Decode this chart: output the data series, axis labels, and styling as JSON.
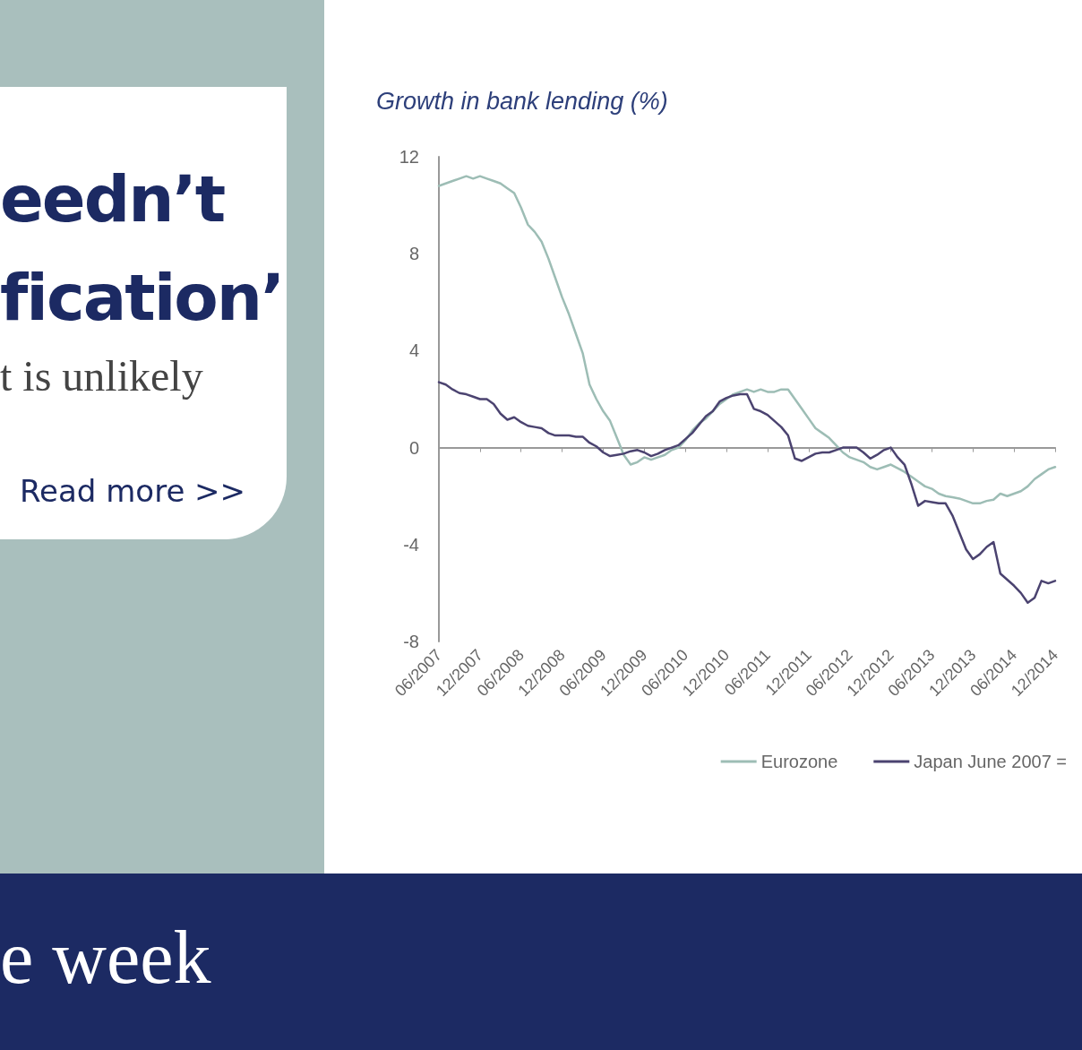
{
  "chart_data": {
    "type": "line",
    "title": "Growth in bank lending (%)",
    "categories": [
      "06/2007",
      null,
      null,
      null,
      null,
      null,
      "12/2007",
      null,
      null,
      null,
      null,
      null,
      "06/2008",
      null,
      null,
      null,
      null,
      null,
      "12/2008",
      null,
      null,
      null,
      null,
      null,
      "06/2009",
      null,
      null,
      null,
      null,
      null,
      "12/2009",
      null,
      null,
      null,
      null,
      null,
      "06/2010",
      null,
      null,
      null,
      null,
      null,
      "12/2010",
      null,
      null,
      null,
      null,
      null,
      "06/2011",
      null,
      null,
      null,
      null,
      null,
      "12/2011",
      null,
      null,
      null,
      null,
      null,
      "06/2012",
      null,
      null,
      null,
      null,
      null,
      "12/2012",
      null,
      null,
      null,
      null,
      null,
      "06/2013",
      null,
      null,
      null,
      null,
      null,
      "12/2013",
      null,
      null,
      null,
      null,
      null,
      "06/2014",
      null,
      null,
      null,
      null,
      null,
      "12/2014"
    ],
    "series": [
      {
        "name": "Eurozone",
        "color": "#9dbdb5",
        "values": [
          10.8,
          10.9,
          11.0,
          11.1,
          11.2,
          11.1,
          11.2,
          11.1,
          11.0,
          10.9,
          10.7,
          10.5,
          9.9,
          9.2,
          8.9,
          8.5,
          7.8,
          7.0,
          6.2,
          5.5,
          4.7,
          3.9,
          2.6,
          2.0,
          1.5,
          1.1,
          0.4,
          -0.3,
          -0.7,
          -0.6,
          -0.4,
          -0.5,
          -0.4,
          -0.3,
          -0.1,
          0,
          0.3,
          0.7,
          1.0,
          1.2,
          1.5,
          1.8,
          2.0,
          2.2,
          2.3,
          2.4,
          2.3,
          2.4,
          2.3,
          2.3,
          2.4,
          2.4,
          2.0,
          1.6,
          1.2,
          0.8,
          0.6,
          0.4,
          0.1,
          -0.2,
          -0.4,
          -0.5,
          -0.6,
          -0.8,
          -0.9,
          -0.8,
          -0.7,
          -0.85,
          -1.0,
          -1.2,
          -1.4,
          -1.6,
          -1.7,
          -1.9,
          -2.0,
          -2.05,
          -2.1,
          -2.2,
          -2.3,
          -2.3,
          -2.2,
          -2.15,
          -1.9,
          -2.0,
          -1.9,
          -1.8,
          -1.6,
          -1.3,
          -1.1,
          -0.9,
          -0.8
        ]
      },
      {
        "name": "Japan June 2007 =",
        "color": "#4b4370",
        "values": [
          2.7,
          2.6,
          2.4,
          2.25,
          2.2,
          2.1,
          2.0,
          2.0,
          1.8,
          1.4,
          1.15,
          1.25,
          1.05,
          0.9,
          0.85,
          0.8,
          0.6,
          0.5,
          0.5,
          0.5,
          0.45,
          0.45,
          0.2,
          0.05,
          -0.2,
          -0.35,
          -0.3,
          -0.25,
          -0.15,
          -0.1,
          -0.2,
          -0.35,
          -0.25,
          -0.1,
          0,
          0.1,
          0.35,
          0.6,
          0.95,
          1.3,
          1.5,
          1.9,
          2.05,
          2.15,
          2.2,
          2.2,
          1.6,
          1.5,
          1.35,
          1.1,
          0.85,
          0.5,
          -0.45,
          -0.55,
          -0.4,
          -0.25,
          -0.2,
          -0.2,
          -0.1,
          0,
          0,
          0,
          -0.2,
          -0.45,
          -0.3,
          -0.1,
          0,
          -0.4,
          -0.7,
          -1.5,
          -2.4,
          -2.2,
          -2.25,
          -2.3,
          -2.3,
          -2.8,
          -3.5,
          -4.2,
          -4.6,
          -4.4,
          -4.1,
          -3.9,
          -5.2,
          -5.45,
          -5.7,
          -6.0,
          -6.4,
          -6.2,
          -5.5,
          -5.6,
          -5.5
        ]
      }
    ],
    "ylim": [
      -8,
      12
    ],
    "yticks": [
      -8,
      -4,
      0,
      4,
      8,
      12
    ],
    "legend": "bottom right",
    "line_style": "solid",
    "annotations": [
      "eedn’t",
      "fication’",
      "t is unlikely",
      "Read more >>",
      "e week"
    ]
  }
}
